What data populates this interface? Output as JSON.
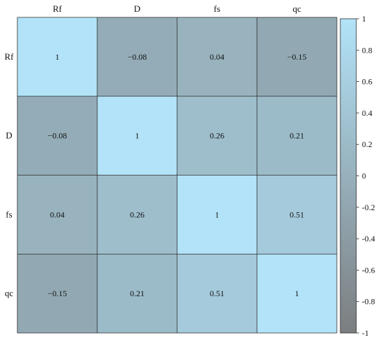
{
  "chart_data": {
    "type": "heatmap",
    "title": "",
    "xlabel": "",
    "ylabel": "",
    "labels": [
      "Rf",
      "D",
      "fs",
      "qc"
    ],
    "matrix": [
      [
        1,
        -0.08,
        0.04,
        -0.15
      ],
      [
        -0.08,
        1,
        0.26,
        0.21
      ],
      [
        0.04,
        0.26,
        1,
        0.51
      ],
      [
        -0.15,
        0.21,
        0.51,
        1
      ]
    ],
    "cell_text": [
      [
        "1",
        "−0.08",
        "0.04",
        "−0.15"
      ],
      [
        "−0.08",
        "1",
        "0.26",
        "0.21"
      ],
      [
        "0.04",
        "0.26",
        "1",
        "0.51"
      ],
      [
        "−0.15",
        "0.21",
        "0.51",
        "1"
      ]
    ],
    "colorbar": {
      "range": [
        -1,
        1
      ],
      "ticks": [
        1,
        0.8,
        0.6,
        0.4,
        0.2,
        0,
        -0.2,
        -0.4,
        -0.6,
        -0.8,
        -1
      ],
      "tick_labels": [
        "1",
        "0.8",
        "0.6",
        "0.4",
        "0.2",
        "0",
        "-0.2",
        "-0.4",
        "-0.6",
        "-0.8",
        "-1"
      ],
      "color_low": "#7b7e80",
      "color_high": "#b2e3f8"
    },
    "grid": false,
    "legend": "right colorbar"
  }
}
